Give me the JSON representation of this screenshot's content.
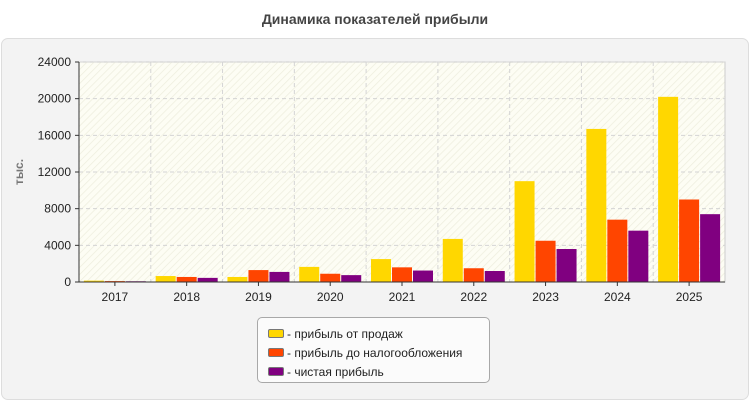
{
  "chart_data": {
    "type": "bar",
    "title": "Динамика показателей прибыли",
    "ylabel": "тыс.",
    "xlabel": "",
    "ylim": [
      0,
      24000
    ],
    "yticks": [
      0,
      4000,
      8000,
      12000,
      16000,
      20000,
      24000
    ],
    "grid": true,
    "legend_position": "bottom",
    "categories": [
      "2017",
      "2018",
      "2019",
      "2020",
      "2021",
      "2022",
      "2023",
      "2024",
      "2025"
    ],
    "series": [
      {
        "name": "- прибыль от продаж",
        "color": "#FFD700",
        "values": [
          150,
          650,
          550,
          1650,
          2500,
          4700,
          11000,
          16700,
          20200
        ]
      },
      {
        "name": "- прибыль до налогообложения",
        "color": "#FF4500",
        "values": [
          100,
          550,
          1300,
          900,
          1600,
          1500,
          4500,
          6800,
          9000
        ]
      },
      {
        "name": "- чистая прибыль",
        "color": "#800080",
        "values": [
          80,
          450,
          1100,
          750,
          1250,
          1200,
          3600,
          5600,
          7400
        ]
      }
    ]
  }
}
